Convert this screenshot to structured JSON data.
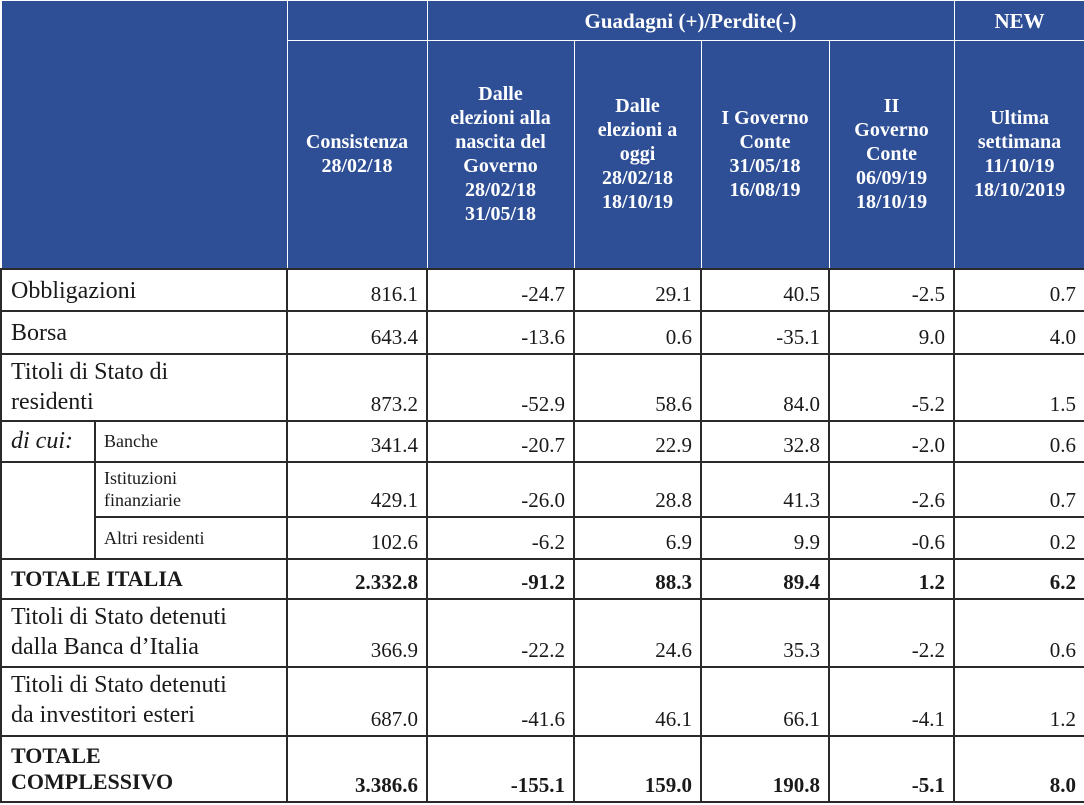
{
  "header": {
    "group_label": "Guadagni (+)/Perdite(-)",
    "new_label": "NEW",
    "col_consistenza": [
      "Consistenza",
      "28/02/18"
    ],
    "col_elezioni_nascita": [
      "Dalle",
      "elezioni alla",
      "nascita del",
      "Governo",
      "28/02/18",
      "31/05/18"
    ],
    "col_elezioni_oggi": [
      "Dalle",
      "elezioni a",
      "oggi",
      "28/02/18",
      "18/10/19"
    ],
    "col_governo_1": [
      "I Governo",
      "Conte",
      "31/05/18",
      "16/08/19"
    ],
    "col_governo_2": [
      "II",
      "Governo",
      "Conte",
      "06/09/19",
      "18/10/19"
    ],
    "col_ultima": [
      "Ultima",
      "settimana",
      "11/10/19",
      "18/10/2019"
    ]
  },
  "rows": {
    "obbligazioni": {
      "label": "Obbligazioni",
      "values": [
        "816.1",
        "-24.7",
        "29.1",
        "40.5",
        "-2.5",
        "0.7"
      ]
    },
    "borsa": {
      "label": "Borsa",
      "values": [
        "643.4",
        "-13.6",
        "0.6",
        "-35.1",
        "9.0",
        "4.0"
      ]
    },
    "titoli_residenti": {
      "label_lines": [
        "Titoli di Stato di",
        "residenti"
      ],
      "values": [
        "873.2",
        "-52.9",
        "58.6",
        "84.0",
        "-5.2",
        "1.5"
      ]
    },
    "di_cui_label": "di cui:",
    "banche": {
      "label": "Banche",
      "values": [
        "341.4",
        "-20.7",
        "22.9",
        "32.8",
        "-2.0",
        "0.6"
      ]
    },
    "istituzioni": {
      "label_lines": [
        "Istituzioni",
        "finanziarie"
      ],
      "values": [
        "429.1",
        "-26.0",
        "28.8",
        "41.3",
        "-2.6",
        "0.7"
      ]
    },
    "altri": {
      "label": "Altri residenti",
      "values": [
        "102.6",
        "-6.2",
        "6.9",
        "9.9",
        "-0.6",
        "0.2"
      ]
    },
    "totale_italia": {
      "label": "TOTALE ITALIA",
      "values": [
        "2.332.8",
        "-91.2",
        "88.3",
        "89.4",
        "1.2",
        "6.2"
      ]
    },
    "banca_italia": {
      "label_lines": [
        "Titoli di Stato detenuti",
        "dalla Banca d’Italia"
      ],
      "values": [
        "366.9",
        "-22.2",
        "24.6",
        "35.3",
        "-2.2",
        "0.6"
      ]
    },
    "esteri": {
      "label_lines": [
        "Titoli di Stato detenuti",
        "da investitori esteri"
      ],
      "values": [
        "687.0",
        "-41.6",
        "46.1",
        "66.1",
        "-4.1",
        "1.2"
      ]
    },
    "totale_complessivo": {
      "label_lines": [
        "TOTALE",
        "COMPLESSIVO"
      ],
      "values": [
        "3.386.6",
        "-155.1",
        "159.0",
        "190.8",
        "-5.1",
        "8.0"
      ]
    }
  },
  "colors": {
    "header_bg": "#2e4f96",
    "header_text": "#ffffff"
  }
}
